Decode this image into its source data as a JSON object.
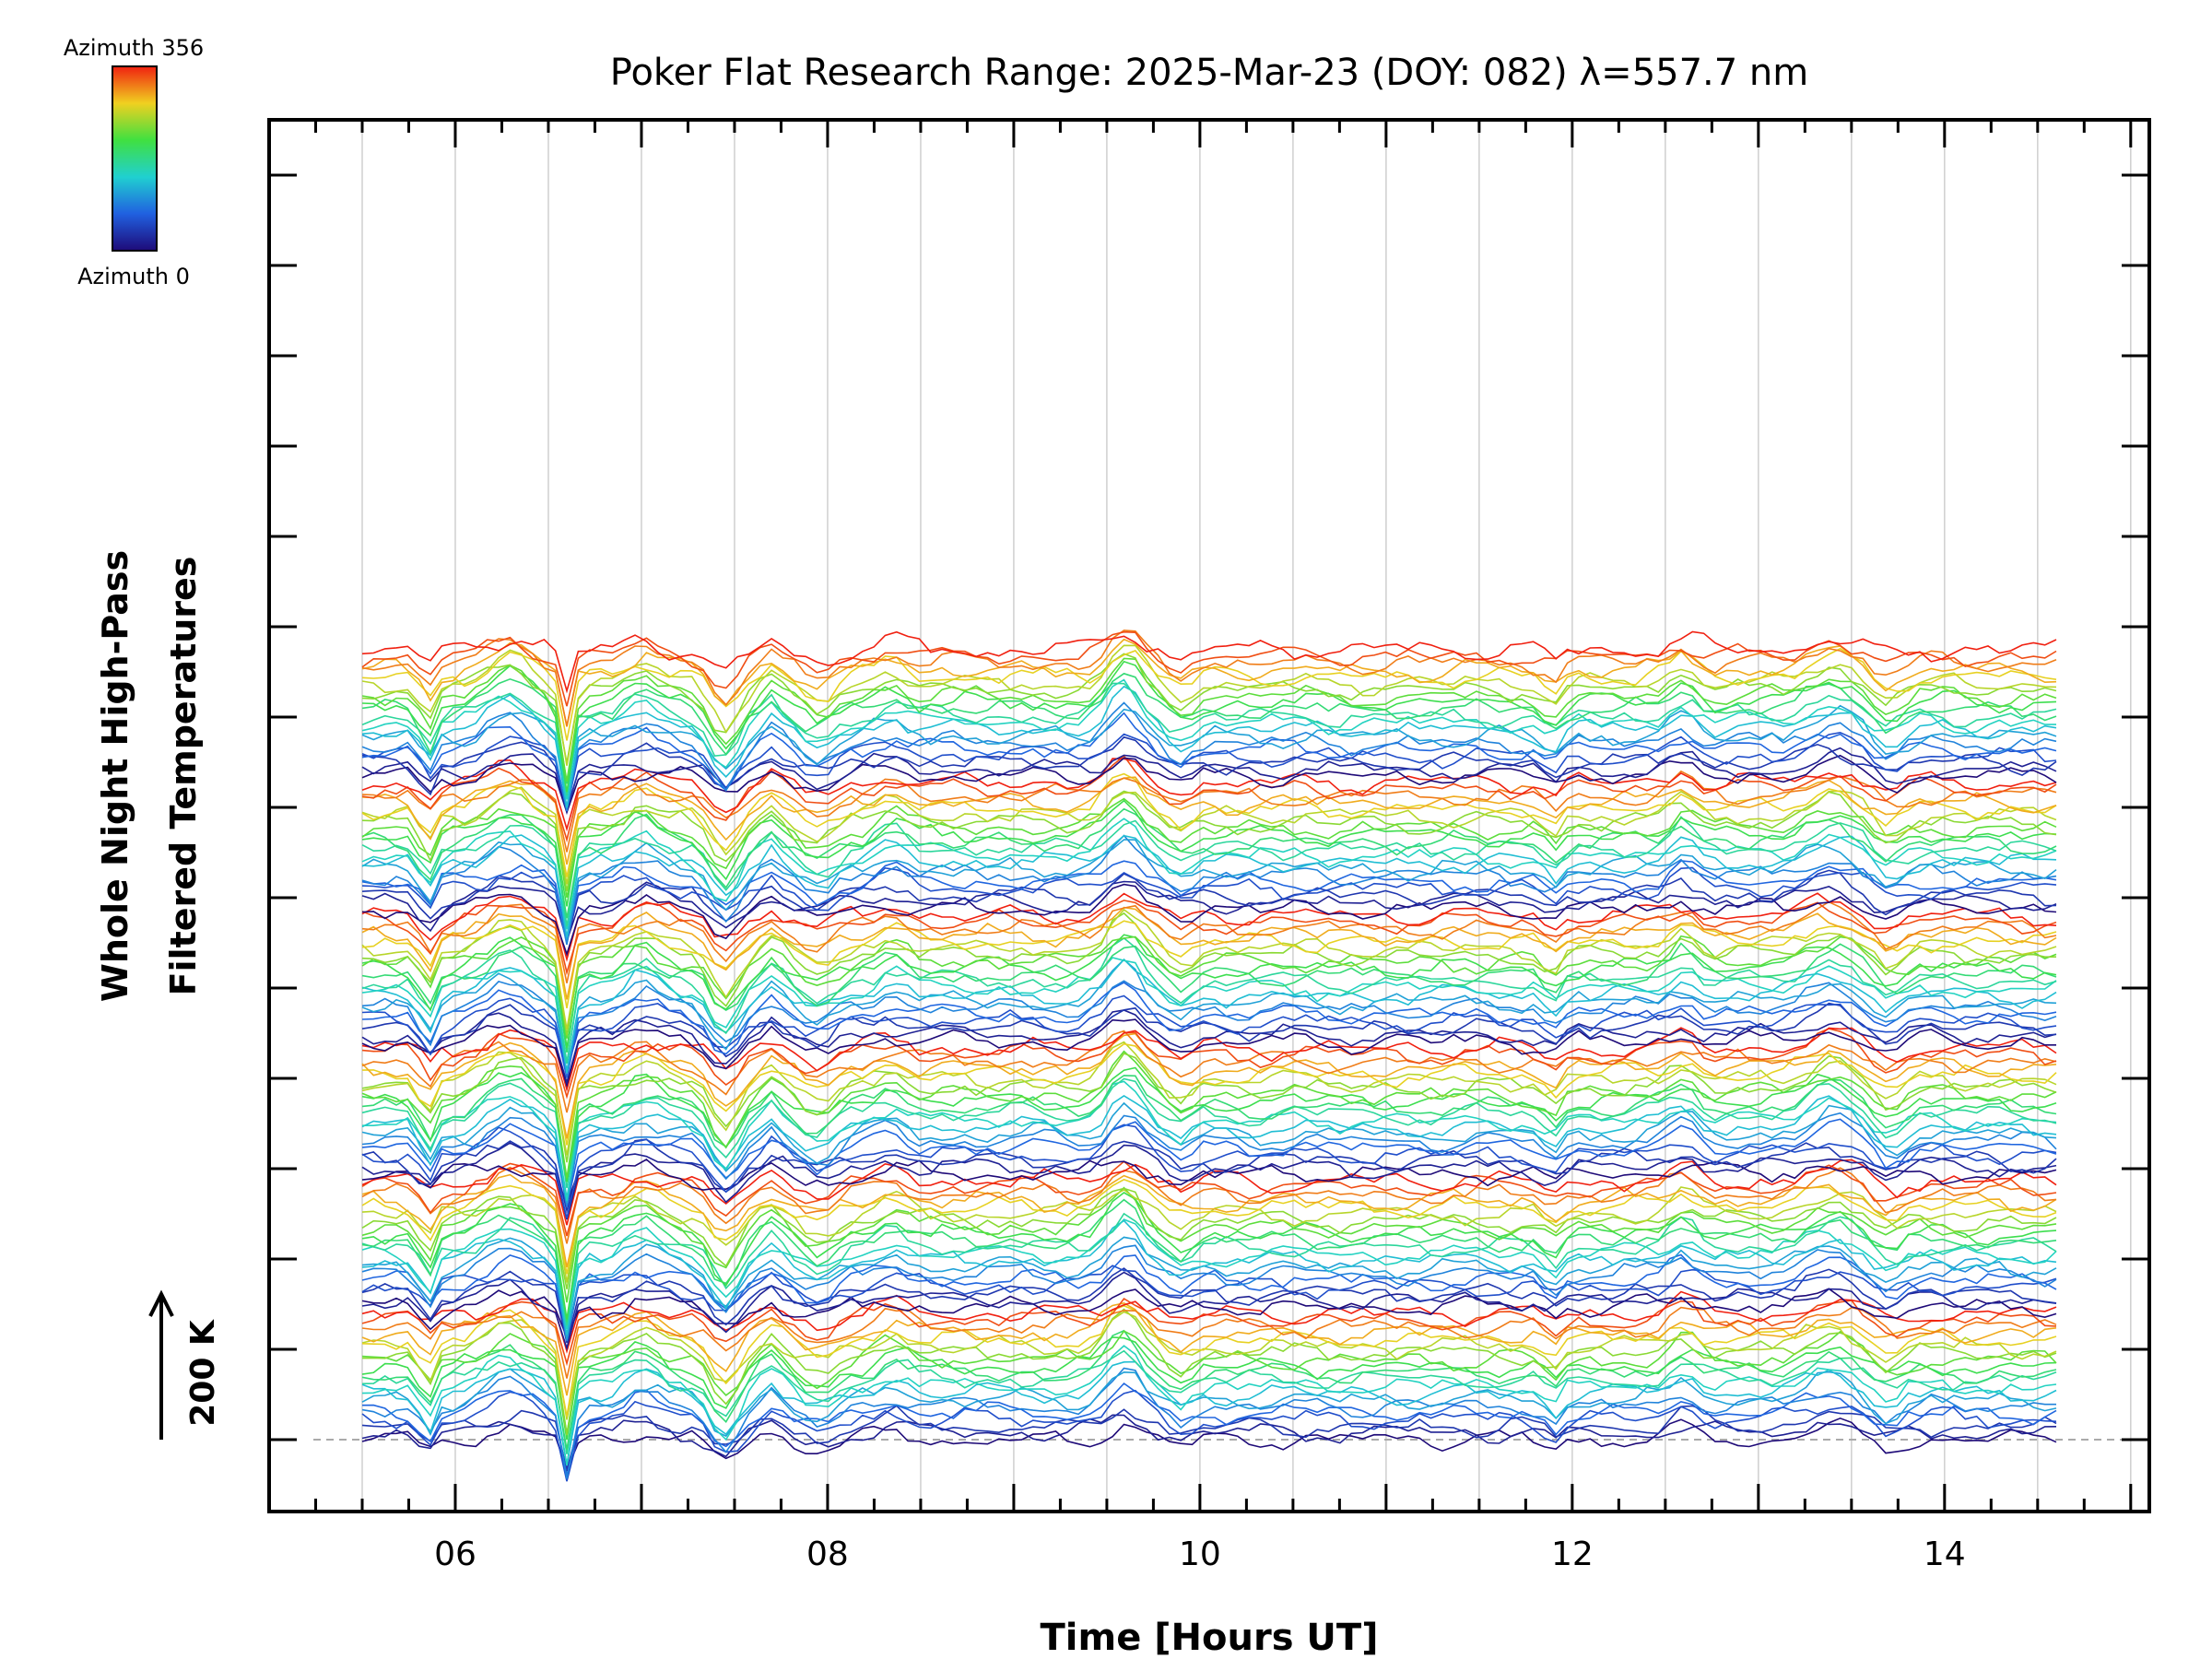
{
  "chart_data": {
    "type": "line",
    "title": "Poker Flat Research Range: 2025-Mar-23 (DOY: 082) λ=557.7 nm",
    "xlabel": "Time [Hours UT]",
    "ylabel_line1": "Whole Night High-Pass",
    "ylabel_line2": "Filtered Temperatures",
    "scale_bar_label": "200 K",
    "xlim": [
      5.0,
      15.1
    ],
    "x_ticks": [
      {
        "value": 6,
        "label": "06"
      },
      {
        "value": 8,
        "label": "08"
      },
      {
        "value": 10,
        "label": "10"
      },
      {
        "value": 12,
        "label": "12"
      },
      {
        "value": 14,
        "label": "14"
      }
    ],
    "x_start": 5.5,
    "x_end": 14.6,
    "legend": {
      "top_label": "Azimuth 356",
      "bottom_label": "Azimuth 0",
      "placement": "top-left",
      "colormap": "rainbow (blue → cyan → green → yellow → red)"
    },
    "series_count": 120,
    "colors": {
      "azimuth_0": "#1a1a8c",
      "azimuth_mid": "#20d0d0",
      "azimuth_356": "#f03010",
      "gridline": "#c8c8c8",
      "axis": "#000000"
    }
  }
}
